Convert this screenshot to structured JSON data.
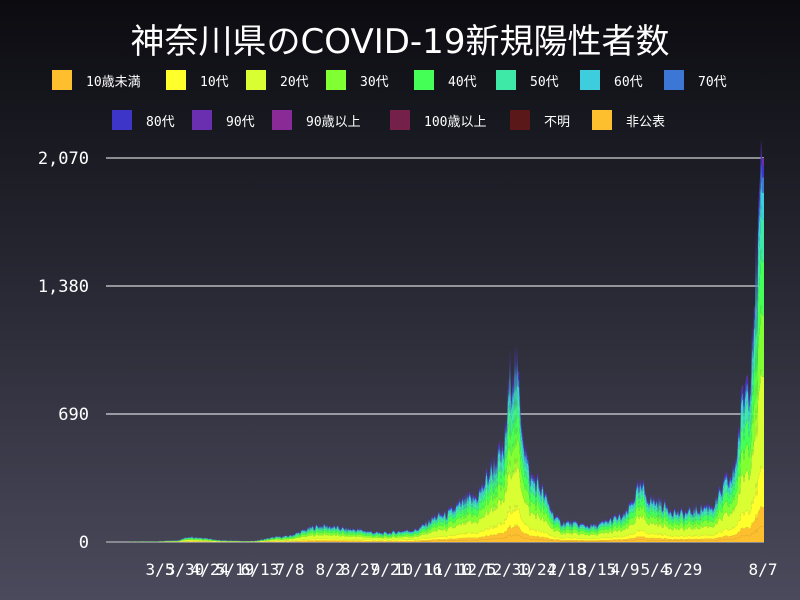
{
  "chart_data": {
    "type": "area",
    "stacked": true,
    "title": "神奈川県のCOVID-19新規陽性者数",
    "xlabel": "",
    "ylabel": "",
    "ylim": [
      0,
      2070
    ],
    "y_ticks": [
      0,
      690,
      1380,
      2070
    ],
    "y_tick_labels": [
      "0",
      "690",
      "1,380",
      "2,070"
    ],
    "x_tick_labels": [
      "3/5",
      "3/30",
      "4/24",
      "5/19",
      "6/13",
      "7/8",
      "8/2",
      "8/27",
      "9/21",
      "10/16",
      "11/10",
      "12/5",
      "12/30",
      "1/24",
      "2/18",
      "3/15",
      "4/9",
      "5/4",
      "5/29",
      "8/7"
    ],
    "grid": true,
    "legend_position": "top",
    "legend": [
      {
        "name": "10歳未満",
        "color": "#fdbf2d"
      },
      {
        "name": "10代",
        "color": "#ffff2b"
      },
      {
        "name": "20代",
        "color": "#d9ff33"
      },
      {
        "name": "30代",
        "color": "#80ff33"
      },
      {
        "name": "40代",
        "color": "#44ff55"
      },
      {
        "name": "50代",
        "color": "#3ee8a6"
      },
      {
        "name": "60代",
        "color": "#3dcddd"
      },
      {
        "name": "70代",
        "color": "#3c77d6"
      },
      {
        "name": "80代",
        "color": "#3c35c8"
      },
      {
        "name": "90代",
        "color": "#6a2fb0"
      },
      {
        "name": "90歳以上",
        "color": "#8a2a96"
      },
      {
        "name": "100歳以上",
        "color": "#74204a"
      },
      {
        "name": "不明",
        "color": "#5a1818"
      },
      {
        "name": "非公表",
        "color": "#fdbf2d"
      }
    ],
    "total_series": {
      "name": "total",
      "points": [
        {
          "date": "3/5",
          "value": 3
        },
        {
          "date": "3/30",
          "value": 8
        },
        {
          "date": "4/15",
          "value": 30
        },
        {
          "date": "4/24",
          "value": 25
        },
        {
          "date": "5/19",
          "value": 8
        },
        {
          "date": "6/13",
          "value": 5
        },
        {
          "date": "7/8",
          "value": 30
        },
        {
          "date": "8/2",
          "value": 90
        },
        {
          "date": "8/27",
          "value": 70
        },
        {
          "date": "9/21",
          "value": 50
        },
        {
          "date": "10/16",
          "value": 65
        },
        {
          "date": "11/10",
          "value": 150
        },
        {
          "date": "12/5",
          "value": 240
        },
        {
          "date": "12/30",
          "value": 480
        },
        {
          "date": "1/8",
          "value": 980
        },
        {
          "date": "1/24",
          "value": 350
        },
        {
          "date": "2/18",
          "value": 110
        },
        {
          "date": "3/15",
          "value": 90
        },
        {
          "date": "4/9",
          "value": 140
        },
        {
          "date": "4/25",
          "value": 300
        },
        {
          "date": "5/4",
          "value": 230
        },
        {
          "date": "5/29",
          "value": 160
        },
        {
          "date": "6/23",
          "value": 200
        },
        {
          "date": "7/10",
          "value": 350
        },
        {
          "date": "7/25",
          "value": 900
        },
        {
          "date": "8/1",
          "value": 1450
        },
        {
          "date": "8/7",
          "value": 2070
        }
      ]
    }
  }
}
